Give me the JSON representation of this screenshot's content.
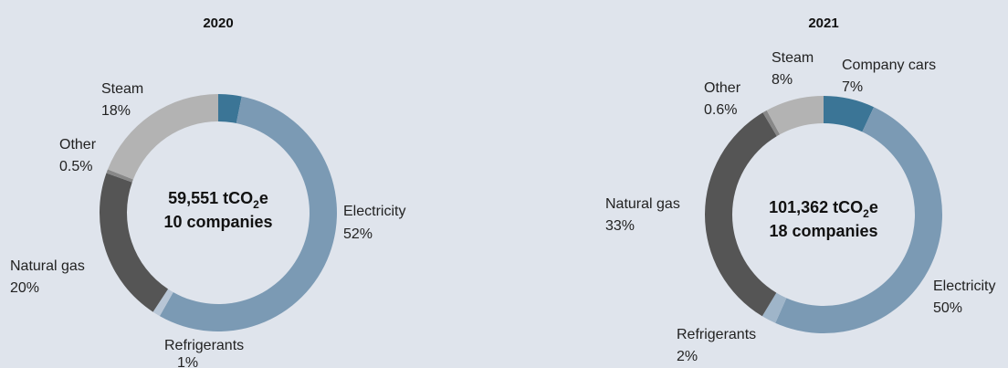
{
  "chart_data": [
    {
      "type": "pie",
      "title": "2020",
      "center_line1_pre": "59,551 tCO",
      "center_line1_sub": "2",
      "center_line1_post": "e",
      "center_line2": "10 companies",
      "slices": [
        {
          "label": "",
          "pct": "",
          "value": 3.0,
          "color": "#3b7596"
        },
        {
          "label": "Electricity",
          "pct": "52%",
          "value": 52,
          "color": "#7b9ab4"
        },
        {
          "label": "Refrigerants",
          "pct": "1%",
          "value": 1,
          "color": "#b8c6d6"
        },
        {
          "label": "Natural gas",
          "pct": "20%",
          "value": 20,
          "color": "#555555"
        },
        {
          "label": "Other",
          "pct": "0.5%",
          "value": 0.5,
          "color": "#888888"
        },
        {
          "label": "Steam",
          "pct": "18%",
          "value": 18,
          "color": "#b3b3b3"
        }
      ]
    },
    {
      "type": "pie",
      "title": "2021",
      "center_line1_pre": "101,362 tCO",
      "center_line1_sub": "2",
      "center_line1_post": "e",
      "center_line2": "18 companies",
      "slices": [
        {
          "label": "Company cars",
          "pct": "7%",
          "value": 7,
          "color": "#3b7596"
        },
        {
          "label": "Electricity",
          "pct": "50%",
          "value": 50,
          "color": "#7b9ab4"
        },
        {
          "label": "Refrigerants",
          "pct": "2%",
          "value": 2,
          "color": "#9fb5c9"
        },
        {
          "label": "Natural gas",
          "pct": "33%",
          "value": 33,
          "color": "#555555"
        },
        {
          "label": "Other",
          "pct": "0.6%",
          "value": 0.6,
          "color": "#888888"
        },
        {
          "label": "Steam",
          "pct": "8%",
          "value": 8,
          "color": "#b3b3b3"
        }
      ]
    }
  ]
}
